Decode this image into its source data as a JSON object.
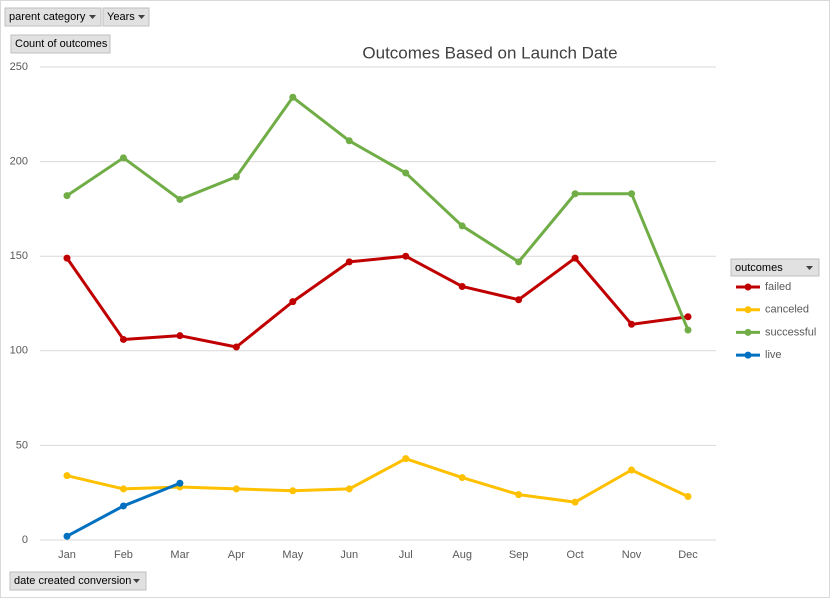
{
  "chart_data": {
    "type": "line",
    "title": "Outcomes Based on Launch Date",
    "filters": [
      "parent category",
      "Years"
    ],
    "value_field": "Count of outcomes",
    "axis_field": "date created conversion",
    "legend_title": "outcomes",
    "legend_position": "right",
    "grid": true,
    "categories": [
      "Jan",
      "Feb",
      "Mar",
      "Apr",
      "May",
      "Jun",
      "Jul",
      "Aug",
      "Sep",
      "Oct",
      "Nov",
      "Dec"
    ],
    "ylim": [
      0,
      250
    ],
    "yticks": [
      0,
      50,
      100,
      150,
      200,
      250
    ],
    "series": [
      {
        "name": "failed",
        "color": "#c00000",
        "values": [
          149,
          106,
          108,
          102,
          126,
          147,
          150,
          134,
          127,
          149,
          114,
          118
        ]
      },
      {
        "name": "canceled",
        "color": "#ffc000",
        "values": [
          34,
          27,
          28,
          27,
          26,
          27,
          43,
          33,
          24,
          20,
          37,
          23
        ]
      },
      {
        "name": "successful",
        "color": "#70ad47",
        "values": [
          182,
          202,
          180,
          192,
          234,
          211,
          194,
          166,
          147,
          183,
          183,
          111
        ]
      },
      {
        "name": "live",
        "color": "#0070c0",
        "values": [
          2,
          18,
          30,
          null,
          null,
          null,
          null,
          null,
          null,
          null,
          null,
          null
        ]
      }
    ]
  }
}
